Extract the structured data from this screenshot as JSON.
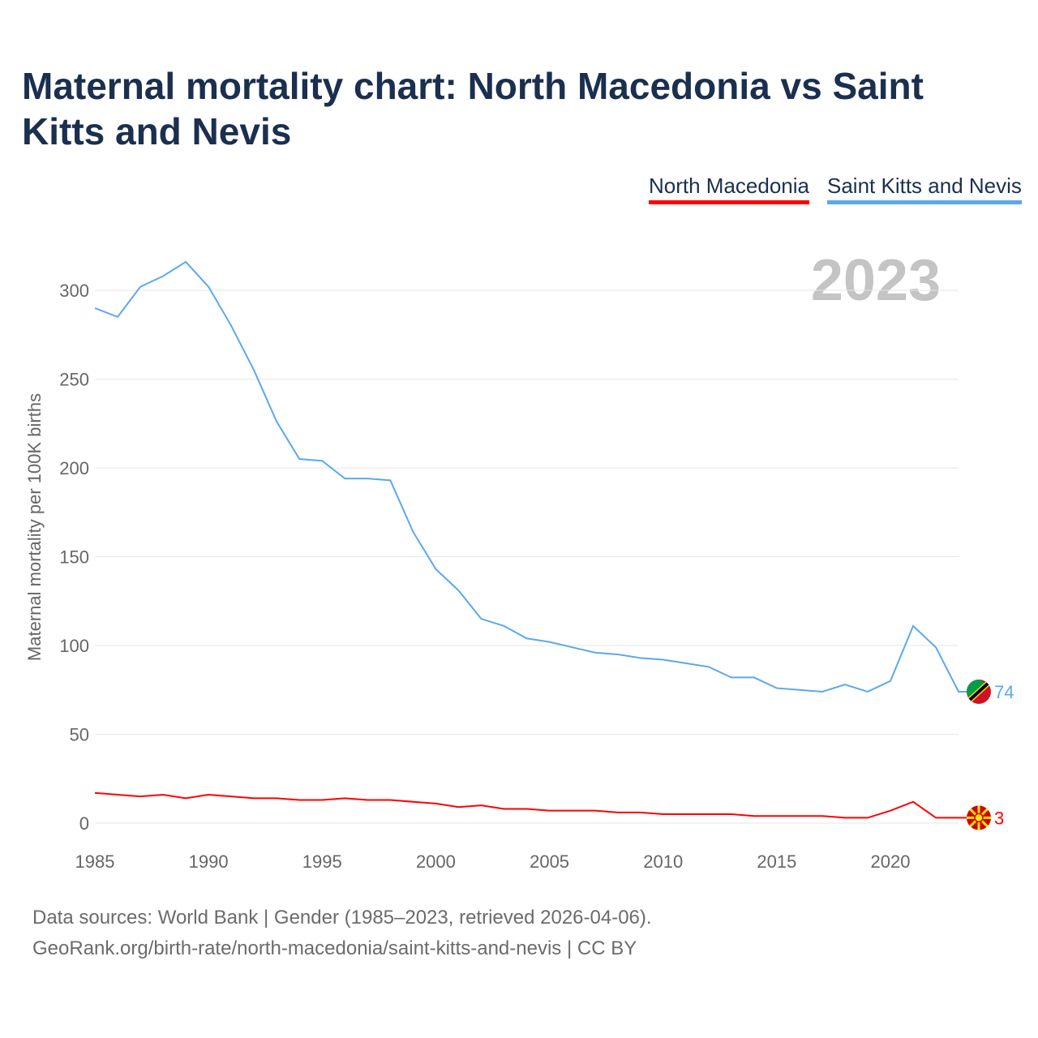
{
  "chart_data": {
    "type": "line",
    "title": "Maternal mortality chart: North Macedonia vs Saint Kitts and Nevis",
    "xlabel": "",
    "ylabel": "Maternal mortality per 100K births",
    "year_label": "2023",
    "xlim": [
      1985,
      2023
    ],
    "ylim": [
      0,
      300
    ],
    "x_ticks": [
      "1985",
      "1990",
      "1995",
      "2000",
      "2005",
      "2010",
      "2015",
      "2020"
    ],
    "y_ticks": [
      "0",
      "50",
      "100",
      "150",
      "200",
      "250",
      "300"
    ],
    "grid": true,
    "legend_position": "top-right",
    "x": [
      1985,
      1986,
      1987,
      1988,
      1989,
      1990,
      1991,
      1992,
      1993,
      1994,
      1995,
      1996,
      1997,
      1998,
      1999,
      2000,
      2001,
      2002,
      2003,
      2004,
      2005,
      2006,
      2007,
      2008,
      2009,
      2010,
      2011,
      2012,
      2013,
      2014,
      2015,
      2016,
      2017,
      2018,
      2019,
      2020,
      2021,
      2022,
      2023
    ],
    "series": [
      {
        "name": "North Macedonia",
        "color": "#ff0000",
        "end_label": "3",
        "values": [
          17,
          16,
          15,
          16,
          14,
          16,
          15,
          14,
          14,
          13,
          13,
          14,
          13,
          13,
          12,
          11,
          9,
          10,
          8,
          8,
          7,
          7,
          7,
          6,
          6,
          5,
          5,
          5,
          5,
          4,
          4,
          4,
          4,
          3,
          3,
          7,
          12,
          3,
          3
        ]
      },
      {
        "name": "Saint Kitts and Nevis",
        "color": "#5ba8ee",
        "end_label": "74",
        "values": [
          290,
          285,
          302,
          308,
          316,
          302,
          280,
          255,
          226,
          205,
          204,
          194,
          194,
          193,
          164,
          143,
          131,
          115,
          111,
          104,
          102,
          99,
          96,
          95,
          93,
          92,
          90,
          88,
          82,
          82,
          76,
          75,
          74,
          78,
          74,
          80,
          111,
          99,
          74
        ]
      }
    ]
  },
  "footer": {
    "line1": "Data sources: World Bank | Gender (1985–2023, retrieved 2026-04-06).",
    "line2": "GeoRank.org/birth-rate/north-macedonia/saint-kitts-and-nevis | CC BY"
  }
}
